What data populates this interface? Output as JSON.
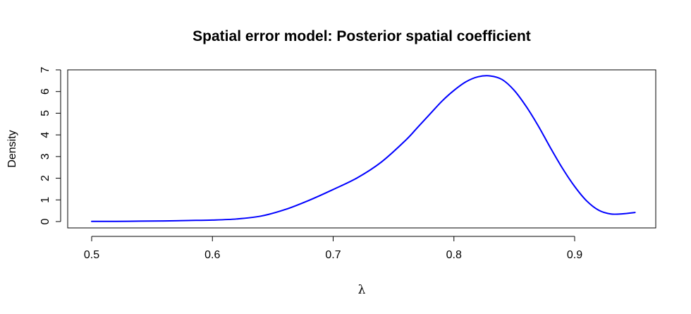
{
  "chart_data": {
    "type": "line",
    "title": "Spatial error model: Posterior spatial coefficient",
    "xlabel": "λ",
    "ylabel": "Density",
    "xlim": [
      0.5,
      0.95
    ],
    "ylim": [
      0,
      7
    ],
    "x_ticks": [
      "0.5",
      "0.6",
      "0.7",
      "0.8",
      "0.9"
    ],
    "y_ticks": [
      "0",
      "1",
      "2",
      "3",
      "4",
      "5",
      "6",
      "7"
    ],
    "grid": false,
    "legend": "none",
    "series": [
      {
        "color": "#0000ff",
        "x": [
          0.5,
          0.52,
          0.54,
          0.56,
          0.58,
          0.6,
          0.62,
          0.64,
          0.66,
          0.68,
          0.7,
          0.72,
          0.74,
          0.76,
          0.77,
          0.78,
          0.79,
          0.8,
          0.81,
          0.82,
          0.83,
          0.84,
          0.85,
          0.86,
          0.87,
          0.88,
          0.89,
          0.9,
          0.91,
          0.92,
          0.93,
          0.94,
          0.95
        ],
        "y": [
          0.01,
          0.01,
          0.02,
          0.03,
          0.05,
          0.07,
          0.12,
          0.25,
          0.55,
          0.98,
          1.48,
          2.02,
          2.75,
          3.75,
          4.35,
          4.95,
          5.55,
          6.05,
          6.45,
          6.68,
          6.72,
          6.55,
          6.05,
          5.3,
          4.4,
          3.4,
          2.45,
          1.62,
          0.95,
          0.52,
          0.35,
          0.36,
          0.42
        ]
      }
    ]
  }
}
